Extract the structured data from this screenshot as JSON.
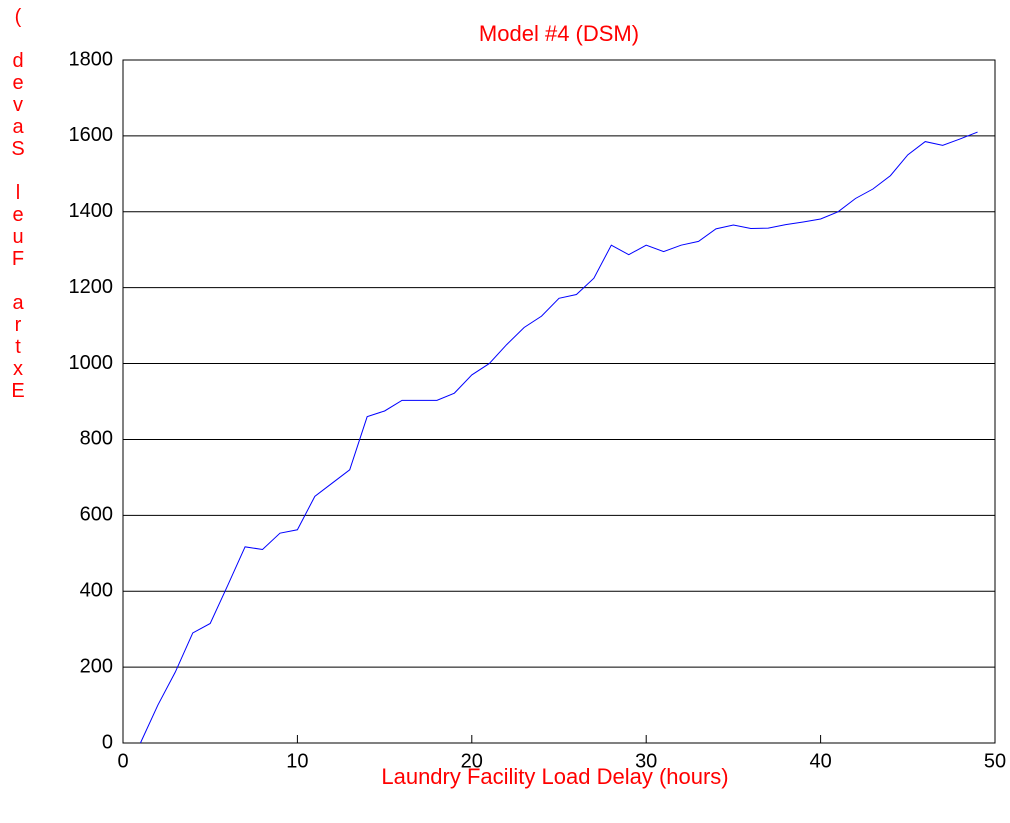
{
  "chart_data": {
    "type": "line",
    "title": "Model #4 (DSM)",
    "xlabel": "Laundry Facility Load Delay (hours)",
    "ylabel": "( devaS leuF artxE",
    "x": [
      1,
      2,
      3,
      4,
      5,
      6,
      7,
      8,
      9,
      10,
      11,
      12,
      13,
      14,
      15,
      16,
      17,
      18,
      19,
      20,
      21,
      22,
      23,
      24,
      25,
      26,
      27,
      28,
      29,
      30,
      31,
      32,
      33,
      34,
      35,
      36,
      37,
      38,
      39,
      40,
      41,
      42,
      43,
      44,
      45,
      46,
      47,
      48,
      49
    ],
    "series": [
      {
        "color": "#0000ff",
        "values": [
          0,
          100,
          187,
          290,
          315,
          415,
          517,
          510,
          553,
          562,
          650,
          685,
          720,
          860,
          875,
          903,
          903,
          903,
          922,
          970,
          1000,
          1050,
          1095,
          1125,
          1172,
          1182,
          1225,
          1312,
          1287,
          1312,
          1295,
          1312,
          1322,
          1355,
          1365,
          1356,
          1357,
          1366,
          1373,
          1381,
          1400,
          1435,
          1460,
          1495,
          1550,
          1585,
          1575,
          1592,
          1610
        ]
      }
    ],
    "xlim": [
      0,
      50
    ],
    "xticks": [
      0,
      10,
      20,
      30,
      40,
      50
    ],
    "ylim": [
      0,
      1800
    ],
    "yticks": [
      0,
      200,
      400,
      600,
      800,
      1000,
      1200,
      1400,
      1600,
      1800
    ],
    "grid": "y"
  }
}
